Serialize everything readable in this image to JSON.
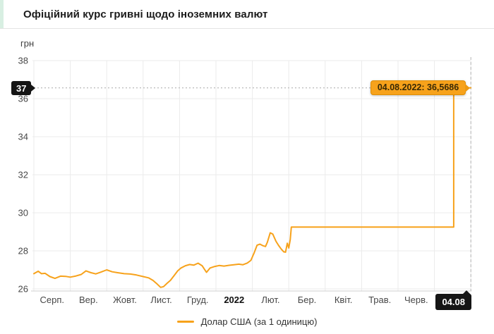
{
  "header": {
    "title": "Офіційний курс гривні щодо іноземних валют",
    "accent_color": "#d8efe2"
  },
  "chart_data": {
    "type": "line",
    "title": "Офіційний курс гривні щодо іноземних валют",
    "xlabel": "",
    "ylabel": "грн",
    "yticks": [
      26,
      28,
      30,
      32,
      34,
      36,
      38
    ],
    "ylim": [
      25.8,
      38.4
    ],
    "grid": true,
    "x_categories": [
      "Серп.",
      "Вер.",
      "Жовт.",
      "Лист.",
      "Груд.",
      "2022",
      "Лют.",
      "Бер.",
      "Квіт.",
      "Трав.",
      "Черв."
    ],
    "x_bold_label": "2022",
    "x_axis_note": "t is measured in months from the first gridline (Aug 2021) to the last (Aug 2022 = 12)",
    "series": [
      {
        "name": "Долар США (за 1 одиницю)",
        "color": "#F7A21B",
        "points": [
          [
            0.0,
            26.8
          ],
          [
            0.12,
            26.93
          ],
          [
            0.21,
            26.8
          ],
          [
            0.31,
            26.82
          ],
          [
            0.44,
            26.65
          ],
          [
            0.58,
            26.55
          ],
          [
            0.73,
            26.67
          ],
          [
            0.87,
            26.66
          ],
          [
            1.0,
            26.62
          ],
          [
            1.16,
            26.68
          ],
          [
            1.3,
            26.76
          ],
          [
            1.43,
            26.95
          ],
          [
            1.57,
            26.85
          ],
          [
            1.7,
            26.79
          ],
          [
            1.84,
            26.88
          ],
          [
            2.0,
            27.0
          ],
          [
            2.15,
            26.9
          ],
          [
            2.3,
            26.85
          ],
          [
            2.48,
            26.8
          ],
          [
            2.65,
            26.78
          ],
          [
            2.82,
            26.73
          ],
          [
            3.0,
            26.65
          ],
          [
            3.15,
            26.58
          ],
          [
            3.27,
            26.45
          ],
          [
            3.39,
            26.25
          ],
          [
            3.48,
            26.08
          ],
          [
            3.56,
            26.12
          ],
          [
            3.66,
            26.3
          ],
          [
            3.75,
            26.45
          ],
          [
            3.85,
            26.7
          ],
          [
            3.95,
            26.95
          ],
          [
            4.04,
            27.1
          ],
          [
            4.16,
            27.22
          ],
          [
            4.28,
            27.28
          ],
          [
            4.39,
            27.25
          ],
          [
            4.51,
            27.35
          ],
          [
            4.62,
            27.22
          ],
          [
            4.74,
            26.87
          ],
          [
            4.84,
            27.1
          ],
          [
            4.95,
            27.17
          ],
          [
            5.09,
            27.23
          ],
          [
            5.22,
            27.2
          ],
          [
            5.36,
            27.24
          ],
          [
            5.49,
            27.27
          ],
          [
            5.63,
            27.3
          ],
          [
            5.74,
            27.27
          ],
          [
            5.86,
            27.36
          ],
          [
            5.96,
            27.5
          ],
          [
            6.05,
            27.9
          ],
          [
            6.13,
            28.3
          ],
          [
            6.21,
            28.35
          ],
          [
            6.29,
            28.27
          ],
          [
            6.36,
            28.23
          ],
          [
            6.41,
            28.45
          ],
          [
            6.49,
            28.95
          ],
          [
            6.56,
            28.88
          ],
          [
            6.65,
            28.5
          ],
          [
            6.72,
            28.28
          ],
          [
            6.79,
            28.1
          ],
          [
            6.86,
            27.95
          ],
          [
            6.91,
            27.93
          ],
          [
            6.96,
            28.4
          ],
          [
            7.0,
            28.15
          ],
          [
            7.04,
            28.6
          ],
          [
            7.07,
            29.25
          ],
          [
            11.53,
            29.25
          ],
          [
            11.53,
            36.5686
          ],
          [
            12.0,
            36.5686
          ]
        ]
      }
    ],
    "markers": {
      "tooltip": "04.08.2022: 36,5686",
      "y_axis_badge": "37",
      "x_axis_badge": "04.08",
      "highlight_value": 36.5686,
      "highlight_t": 12.0
    },
    "legend": {
      "label": "Долар США (за 1 одиницю)",
      "position": "bottom"
    }
  }
}
